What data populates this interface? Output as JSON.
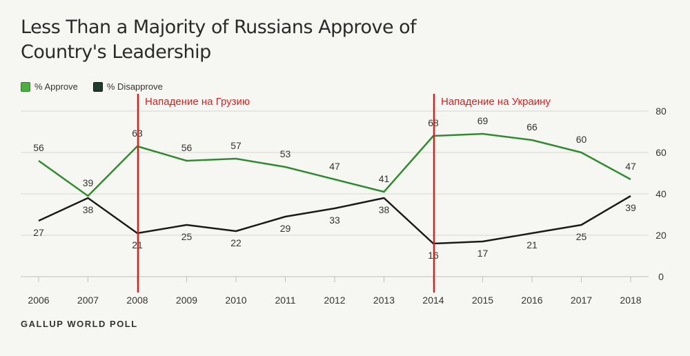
{
  "chart_data": {
    "type": "line",
    "title": "Less Than a Majority of Russians Approve of Country's Leadership",
    "x": [
      "2006",
      "2007",
      "2008",
      "2009",
      "2010",
      "2011",
      "2012",
      "2013",
      "2014",
      "2015",
      "2016",
      "2017",
      "2018"
    ],
    "series": [
      {
        "name": "% Approve",
        "color": "#2e8b2e",
        "values": [
          56,
          39,
          63,
          56,
          57,
          53,
          47,
          41,
          68,
          69,
          66,
          60,
          47
        ]
      },
      {
        "name": "% Disapprove",
        "color": "#1a1a1a",
        "values": [
          27,
          38,
          21,
          25,
          22,
          29,
          33,
          38,
          16,
          17,
          21,
          25,
          39
        ]
      }
    ],
    "ylim": [
      0,
      80
    ],
    "yticks": [
      0,
      20,
      40,
      60,
      80
    ],
    "grid": true,
    "legend_position": "top-left",
    "annotations": [
      {
        "x": "2008",
        "label": "Нападение на Грузию",
        "color": "#d62020"
      },
      {
        "x": "2014",
        "label": "Нападение на Украину",
        "color": "#d62020"
      }
    ]
  },
  "legend": [
    {
      "label": "% Approve",
      "color": "#4caf3f"
    },
    {
      "label": "% Disapprove",
      "color": "#1f3d2a"
    }
  ],
  "source": "GALLUP WORLD POLL"
}
